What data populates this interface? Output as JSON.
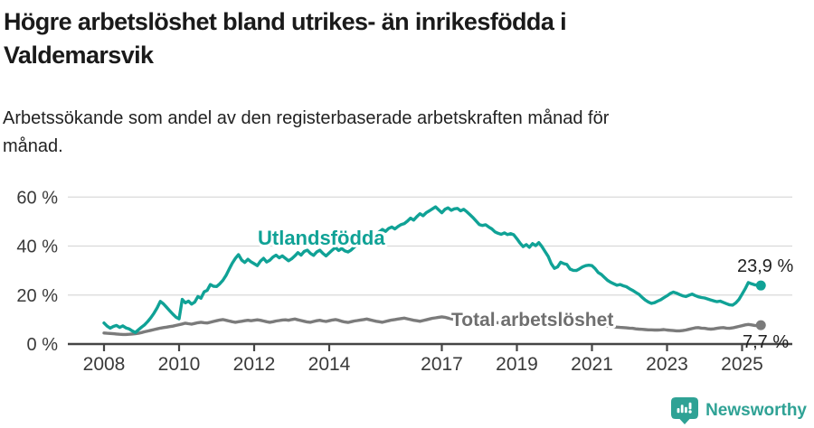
{
  "header": {
    "title_lines": [
      "Högre arbetslöshet bland utrikes- än inrikesfödda i",
      "Valdemarsvik"
    ],
    "subtitle_lines": [
      "Arbetssökande som andel av den registerbaserade arbetskraften månad för",
      "månad."
    ]
  },
  "chart_data": {
    "type": "line",
    "unit": "%",
    "frequency": "monthly",
    "x_start": {
      "year": 2008,
      "month": 1
    },
    "x_end": {
      "year": 2025,
      "month": 7
    },
    "ylim": [
      0,
      62
    ],
    "grid": "horizontal",
    "legend_position": "inline-labels",
    "y_ticks": [
      0,
      20,
      40,
      60
    ],
    "y_tick_labels": [
      "0 %",
      "20 %",
      "40 %",
      "60 %"
    ],
    "x_ticks": [
      2008,
      2010,
      2012,
      2014,
      2017,
      2019,
      2021,
      2023,
      2025
    ],
    "x_tick_labels": [
      "2008",
      "2010",
      "2012",
      "2014",
      "2017",
      "2019",
      "2021",
      "2023",
      "2025"
    ],
    "series": [
      {
        "name": "Utlandsfödda",
        "color": "#10a296",
        "end_value": 23.9,
        "end_value_label": "23,9 %",
        "values": [
          8.6,
          7.3,
          6.5,
          7.2,
          7.6,
          6.8,
          7.4,
          6.6,
          6.2,
          5.4,
          4.7,
          5.8,
          6.9,
          7.9,
          9.2,
          10.8,
          12.6,
          14.8,
          17.4,
          16.4,
          15.0,
          13.6,
          12.2,
          11.0,
          10.3,
          18.2,
          16.8,
          17.5,
          16.3,
          17.1,
          19.4,
          18.7,
          21.3,
          21.9,
          24.3,
          23.6,
          23.5,
          24.6,
          26.0,
          28.0,
          30.5,
          33.0,
          35.0,
          36.5,
          34.3,
          33.3,
          34.6,
          33.6,
          32.8,
          32.0,
          33.8,
          35.0,
          33.5,
          34.2,
          35.5,
          36.3,
          35.2,
          36.0,
          35.0,
          34.0,
          34.8,
          36.0,
          37.3,
          36.3,
          37.8,
          38.3,
          37.0,
          36.2,
          37.6,
          38.3,
          37.0,
          36.0,
          37.2,
          38.4,
          39.4,
          38.2,
          39.0,
          38.0,
          37.6,
          38.4,
          39.6,
          40.6,
          41.8,
          43.0,
          43.8,
          44.6,
          45.4,
          44.6,
          45.8,
          46.8,
          46.0,
          47.2,
          47.8,
          47.0,
          48.0,
          48.8,
          49.2,
          50.2,
          51.4,
          50.6,
          52.0,
          53.2,
          52.4,
          53.6,
          54.4,
          55.2,
          56.0,
          54.8,
          53.6,
          55.0,
          55.6,
          54.6,
          55.2,
          55.4,
          54.4,
          55.0,
          54.0,
          52.8,
          51.6,
          50.2,
          48.8,
          48.4,
          48.7,
          47.8,
          47.0,
          45.8,
          45.2,
          44.8,
          45.4,
          44.7,
          45.1,
          44.6,
          43.0,
          41.2,
          39.8,
          40.6,
          39.5,
          41.0,
          40.2,
          41.4,
          39.8,
          37.8,
          35.8,
          32.8,
          30.9,
          31.5,
          33.4,
          32.8,
          32.5,
          30.6,
          30.1,
          30.0,
          30.7,
          31.5,
          32.0,
          32.2,
          32.0,
          30.8,
          29.2,
          28.4,
          27.2,
          26.0,
          25.2,
          24.6,
          24.0,
          24.3,
          23.8,
          23.4,
          22.6,
          21.9,
          21.1,
          20.3,
          19.1,
          18.0,
          17.2,
          16.6,
          16.9,
          17.5,
          18.1,
          18.9,
          19.7,
          20.6,
          21.2,
          20.8,
          20.2,
          19.7,
          19.4,
          19.9,
          20.4,
          19.8,
          19.3,
          19.0,
          18.8,
          18.4,
          18.0,
          17.6,
          17.3,
          17.5,
          17.0,
          16.5,
          16.0,
          15.9,
          16.8,
          18.2,
          20.4,
          22.6,
          25.1,
          24.6,
          24.2,
          24.0,
          23.9
        ]
      },
      {
        "name": "Total arbetslöshet",
        "color": "#7b7b7b",
        "end_value": 7.7,
        "end_value_label": "7,7 %",
        "values": [
          4.5,
          4.4,
          4.3,
          4.2,
          4.1,
          4.0,
          3.9,
          3.9,
          4.0,
          4.1,
          4.2,
          4.4,
          4.7,
          5.0,
          5.3,
          5.6,
          5.9,
          6.2,
          6.5,
          6.7,
          6.9,
          7.1,
          7.3,
          7.6,
          7.9,
          8.2,
          8.5,
          8.3,
          8.1,
          8.4,
          8.7,
          8.9,
          8.7,
          8.6,
          8.9,
          9.2,
          9.5,
          9.8,
          10.0,
          9.7,
          9.4,
          9.1,
          8.9,
          9.1,
          9.3,
          9.5,
          9.7,
          9.5,
          9.7,
          9.9,
          9.7,
          9.4,
          9.1,
          8.9,
          9.1,
          9.4,
          9.6,
          9.8,
          9.9,
          9.7,
          10.0,
          10.2,
          9.9,
          9.6,
          9.3,
          9.0,
          8.9,
          9.2,
          9.5,
          9.7,
          9.4,
          9.2,
          9.5,
          9.8,
          10.0,
          9.7,
          9.3,
          9.0,
          8.8,
          9.1,
          9.4,
          9.6,
          9.8,
          10.0,
          10.2,
          9.9,
          9.6,
          9.3,
          9.1,
          8.9,
          9.2,
          9.5,
          9.8,
          10.0,
          10.2,
          10.4,
          10.6,
          10.3,
          10.0,
          9.7,
          9.5,
          9.3,
          9.6,
          9.9,
          10.2,
          10.5,
          10.7,
          10.9,
          11.1,
          10.9,
          10.6,
          10.3,
          10.0,
          9.8,
          10.0,
          10.3,
          10.5,
          10.2,
          9.9,
          9.7,
          9.9,
          9.7,
          9.5,
          9.2,
          9.0,
          8.8,
          8.7,
          8.9,
          9.1,
          9.0,
          8.8,
          8.7,
          8.6,
          8.5,
          8.3,
          8.1,
          8.0,
          7.9,
          7.8,
          8.0,
          8.1,
          8.0,
          7.9,
          7.8,
          7.9,
          8.0,
          8.5,
          9.0,
          9.2,
          9.1,
          9.0,
          8.9,
          8.8,
          8.6,
          8.5,
          8.4,
          8.3,
          8.1,
          7.9,
          7.7,
          7.5,
          7.3,
          7.1,
          7.0,
          6.9,
          6.8,
          6.7,
          6.6,
          6.5,
          6.4,
          6.2,
          6.1,
          6.0,
          5.9,
          5.8,
          5.8,
          5.7,
          5.7,
          5.8,
          5.9,
          5.7,
          5.6,
          5.5,
          5.4,
          5.4,
          5.5,
          5.7,
          6.0,
          6.3,
          6.6,
          6.7,
          6.5,
          6.4,
          6.2,
          6.1,
          6.2,
          6.4,
          6.6,
          6.7,
          6.5,
          6.4,
          6.6,
          6.9,
          7.2,
          7.5,
          7.8,
          8.0,
          7.8,
          7.6,
          7.5,
          7.7
        ]
      }
    ],
    "colors": {
      "axis": "#454545",
      "gridline": "#d9d9d9",
      "tick_text": "#3a3a3a",
      "value_label_text": "#1f1f1f",
      "series_label_total": "#6f6f6f"
    }
  },
  "footer": {
    "brand": "Newsworthy",
    "brand_color": "#2fa295",
    "logo_icon": "speech-bubble-bar-chart-exclamation"
  }
}
